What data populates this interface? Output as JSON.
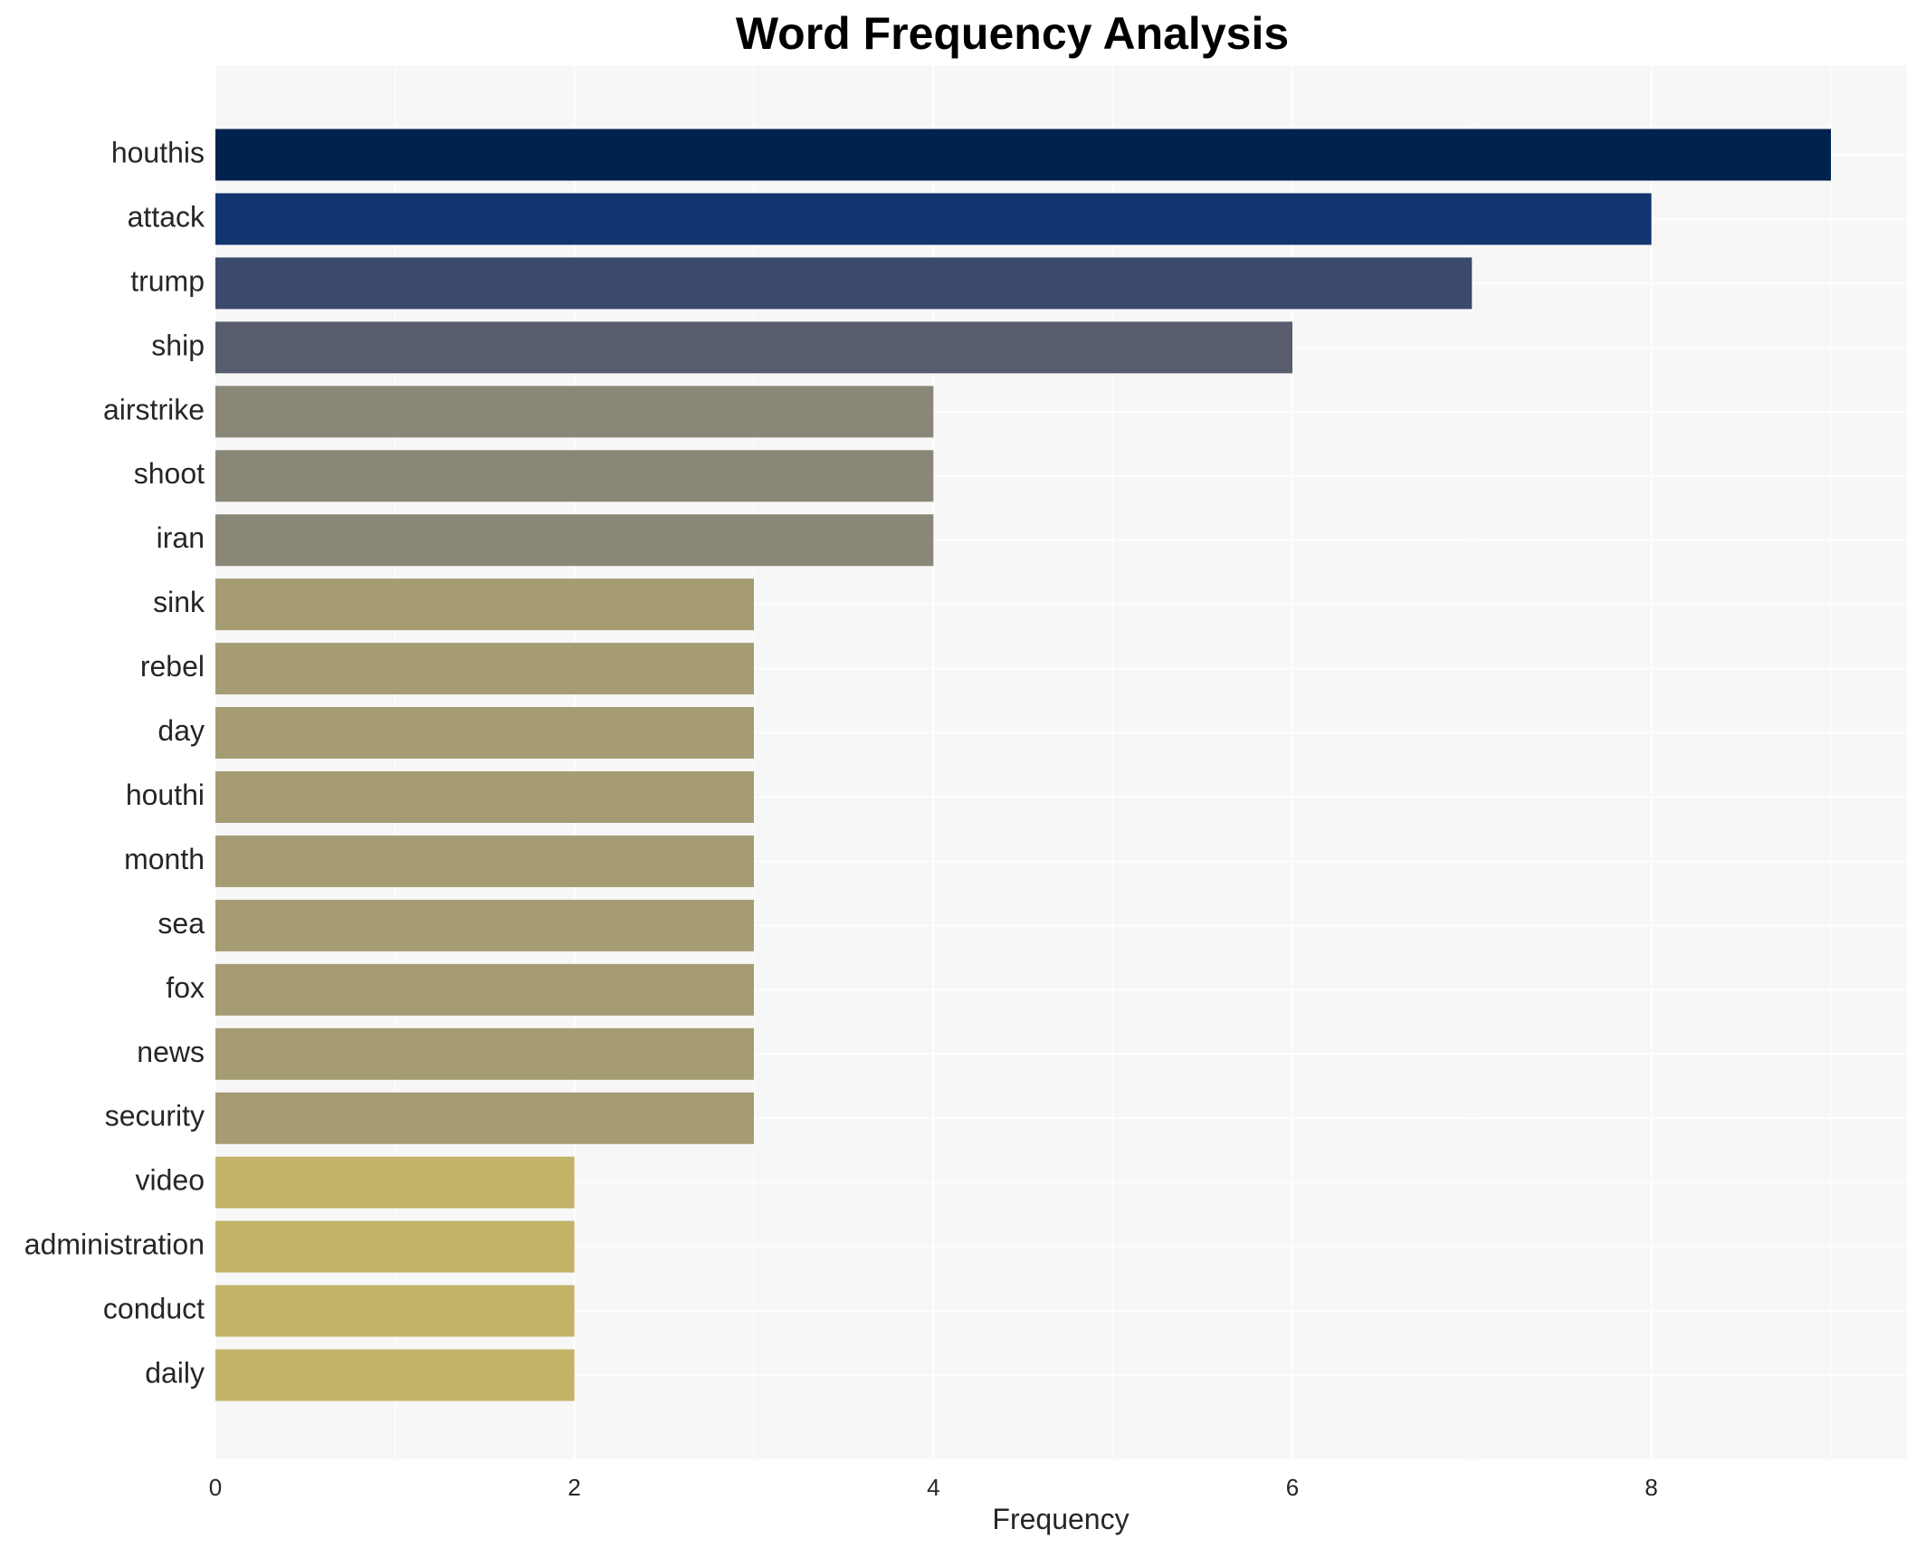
{
  "chart_data": {
    "type": "bar",
    "orientation": "horizontal",
    "title": "Word Frequency Analysis",
    "xlabel": "Frequency",
    "ylabel": "",
    "xlim": [
      0,
      9.45
    ],
    "xticks": [
      0,
      2,
      4,
      6,
      8
    ],
    "grid": true,
    "background": "#f7f7f7",
    "categories": [
      "houthis",
      "attack",
      "trump",
      "ship",
      "airstrike",
      "shoot",
      "iran",
      "sink",
      "rebel",
      "day",
      "houthi",
      "month",
      "sea",
      "fox",
      "news",
      "security",
      "video",
      "administration",
      "conduct",
      "daily"
    ],
    "values": [
      9,
      8,
      7,
      6,
      4,
      4,
      4,
      3,
      3,
      3,
      3,
      3,
      3,
      3,
      3,
      3,
      2,
      2,
      2,
      2
    ],
    "colors": [
      "#00224e",
      "#123570",
      "#3b496c",
      "#575d6d",
      "#8a8779",
      "#8a8779",
      "#8a8779",
      "#a59c74",
      "#a59c74",
      "#a59c74",
      "#a59c74",
      "#a59c74",
      "#a59c74",
      "#a59c74",
      "#a59c74",
      "#a59c74",
      "#c3b369",
      "#c3b369",
      "#c3b369",
      "#c3b369"
    ]
  }
}
